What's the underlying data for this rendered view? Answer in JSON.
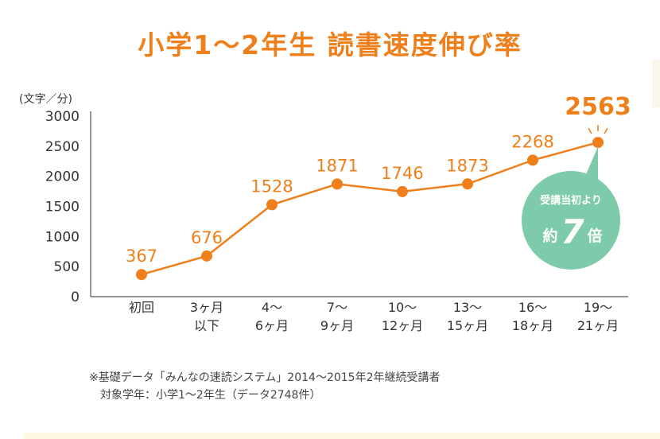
{
  "chart_data": {
    "type": "line",
    "title": "小学1～2年生 読書速度伸び率",
    "ylabel": "(文字／分)",
    "ylim": [
      0,
      3000
    ],
    "yticks": [
      "0",
      "500",
      "1000",
      "1500",
      "2000",
      "2500",
      "3000"
    ],
    "yticks_values": [
      0,
      500,
      1000,
      1500,
      2000,
      2500,
      3000
    ],
    "categories": [
      [
        "初回"
      ],
      [
        "3ヶ月",
        "以下"
      ],
      [
        "4～",
        "6ヶ月"
      ],
      [
        "7～",
        "9ヶ月"
      ],
      [
        "10～",
        "12ヶ月"
      ],
      [
        "13～",
        "15ヶ月"
      ],
      [
        "16～",
        "18ヶ月"
      ],
      [
        "19～",
        "21ヶ月"
      ]
    ],
    "values": [
      367,
      676,
      1528,
      1871,
      1746,
      1873,
      2268,
      2563
    ],
    "value_labels": [
      "367",
      "676",
      "1528",
      "1871",
      "1746",
      "1873",
      "2268",
      "2563"
    ],
    "line_color": "#ee7f1a",
    "badge": {
      "line1": "受講当初より",
      "prefix": "約",
      "number": "7",
      "suffix": "倍",
      "color": "#7dcbaa"
    }
  },
  "notes": {
    "line1": "※基礎データ「みんなの速読システム」2014～2015年2年継続受講者",
    "line2": "対象学年：小学1～2年生（データ2748件）"
  }
}
